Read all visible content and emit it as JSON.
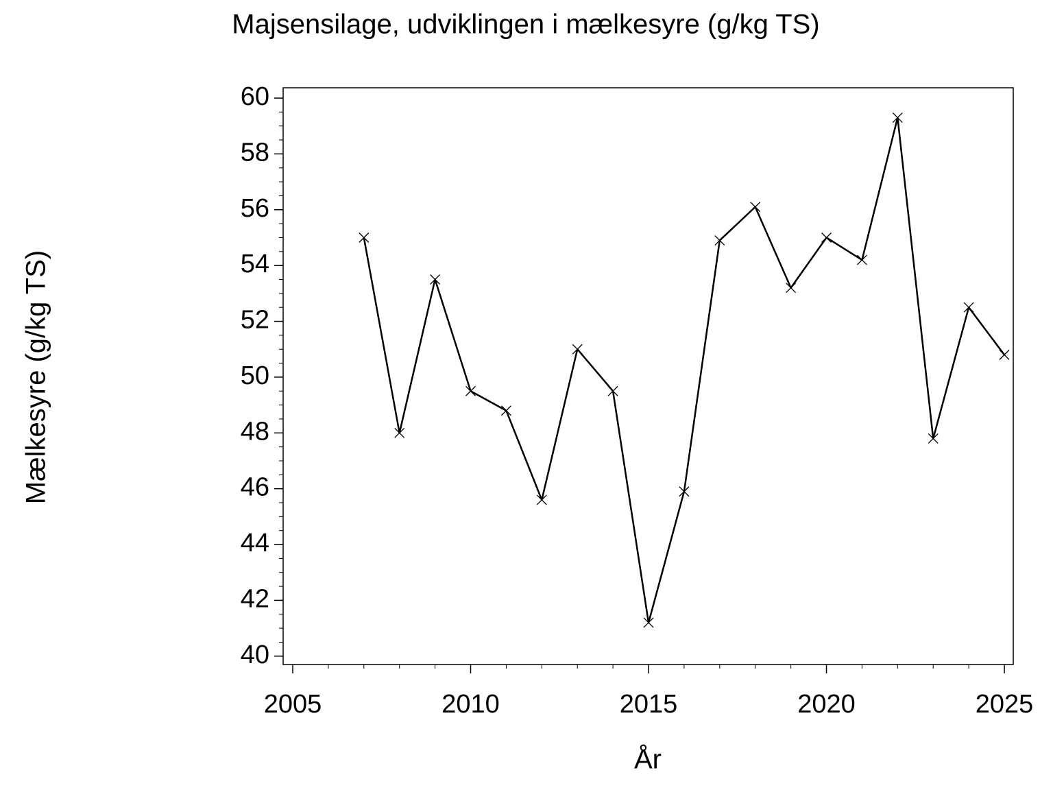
{
  "chart_data": {
    "type": "line",
    "title": "Majsensilage,  udviklingen  i  mælkesyre  (g/kg  TS)",
    "xlabel": "År",
    "ylabel": "Mælkesyre  (g/kg  TS)",
    "x": [
      2007,
      2008,
      2009,
      2010,
      2011,
      2012,
      2013,
      2014,
      2015,
      2016,
      2017,
      2018,
      2019,
      2020,
      2021,
      2022,
      2023,
      2024,
      2025
    ],
    "series": [
      {
        "name": "Mælkesyre",
        "color": "#000000",
        "values": [
          55.0,
          48.0,
          53.5,
          49.5,
          48.8,
          45.6,
          51.0,
          49.5,
          41.2,
          45.9,
          54.9,
          56.1,
          53.2,
          55.0,
          54.2,
          59.3,
          47.8,
          52.5,
          50.8
        ]
      }
    ],
    "marker": "x",
    "xlim": [
      2004.73,
      2025.25
    ],
    "ylim": [
      39.7,
      60.37
    ],
    "xticks": [
      2005,
      2010,
      2015,
      2020,
      2025
    ],
    "yticks": [
      40,
      42,
      44,
      46,
      48,
      50,
      52,
      54,
      56,
      58,
      60
    ],
    "xminor_step": 1,
    "yminor_step": 0.5
  }
}
